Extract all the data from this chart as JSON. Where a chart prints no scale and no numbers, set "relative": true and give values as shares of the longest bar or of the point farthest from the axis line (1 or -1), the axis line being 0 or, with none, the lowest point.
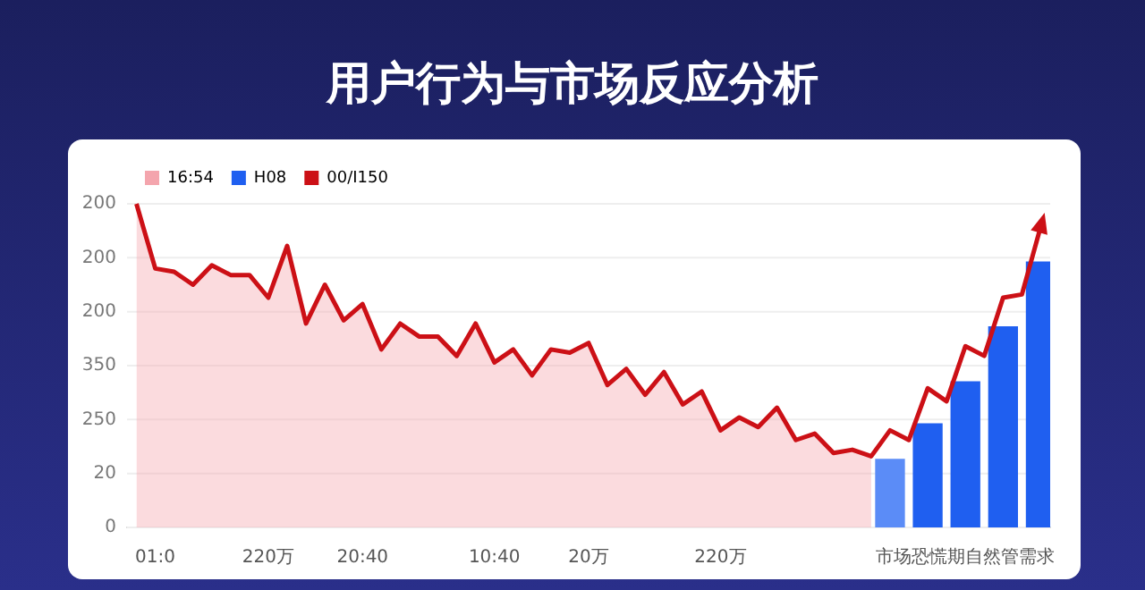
{
  "chart_data": {
    "type": "line",
    "title": "用户行为与市场反应分析",
    "relative": true,
    "categories": [
      null,
      "01:0",
      null,
      null,
      null,
      null,
      null,
      "220万",
      null,
      null,
      null,
      null,
      "20:40",
      null,
      null,
      null,
      null,
      null,
      null,
      "10:40",
      null,
      null,
      null,
      null,
      "20万",
      null,
      null,
      null,
      null,
      null,
      null,
      "220万",
      null,
      null,
      null,
      null,
      null,
      null,
      null,
      null,
      null,
      null,
      null,
      null,
      "市场恐慌期自然管需求",
      null,
      null,
      null,
      null
    ],
    "series": [
      {
        "name": "16:54",
        "type": "area",
        "color": "#f4a5ad",
        "values": [
          1,
          0.8,
          0.79,
          0.75,
          0.81,
          0.78,
          0.78,
          0.71,
          0.87,
          0.63,
          0.75,
          0.64,
          0.69,
          0.55,
          0.63,
          0.59,
          0.59,
          0.53,
          0.63,
          0.51,
          0.55,
          0.47,
          0.55,
          0.54,
          0.57,
          0.44,
          0.49,
          0.41,
          0.48,
          0.38,
          0.42,
          0.3,
          0.34,
          0.31,
          0.37,
          0.27,
          0.29,
          0.23,
          0.24,
          0.22,
          null,
          null,
          null,
          null,
          null,
          null,
          null,
          null,
          null
        ]
      },
      {
        "name": "H08",
        "type": "bar",
        "color": "#1f5ff0",
        "colors": [
          null,
          null,
          null,
          null,
          null,
          null,
          null,
          null,
          null,
          null,
          null,
          null,
          null,
          null,
          null,
          null,
          null,
          null,
          null,
          null,
          null,
          null,
          null,
          null,
          null,
          null,
          null,
          null,
          null,
          null,
          null,
          null,
          null,
          null,
          null,
          null,
          null,
          null,
          null,
          null,
          "#5b8cf7",
          null,
          "#1f5ff0",
          null,
          "#1f5ff0",
          null,
          "#1f5ff0",
          null,
          "#1f5ff0"
        ],
        "values": [
          null,
          null,
          null,
          null,
          null,
          null,
          null,
          null,
          null,
          null,
          null,
          null,
          null,
          null,
          null,
          null,
          null,
          null,
          null,
          null,
          null,
          null,
          null,
          null,
          null,
          null,
          null,
          null,
          null,
          null,
          null,
          null,
          null,
          null,
          null,
          null,
          null,
          null,
          null,
          null,
          0.21,
          null,
          0.32,
          null,
          0.45,
          null,
          0.62,
          null,
          0.82
        ]
      },
      {
        "name": "00/I150",
        "color": "#cc1016",
        "values": [
          1,
          0.8,
          0.79,
          0.75,
          0.81,
          0.78,
          0.78,
          0.71,
          0.87,
          0.63,
          0.75,
          0.64,
          0.69,
          0.55,
          0.63,
          0.59,
          0.59,
          0.53,
          0.63,
          0.51,
          0.55,
          0.47,
          0.55,
          0.54,
          0.57,
          0.44,
          0.49,
          0.41,
          0.48,
          0.38,
          0.42,
          0.3,
          0.34,
          0.31,
          0.37,
          0.27,
          0.29,
          0.23,
          0.24,
          0.22,
          0.3,
          0.27,
          0.43,
          0.39,
          0.56,
          0.53,
          0.71,
          0.72,
          0.93
        ]
      }
    ],
    "annotations": [
      "200",
      "200",
      "200",
      "350",
      "250",
      "20",
      "0"
    ],
    "grid": "y",
    "legend": "top left",
    "marker": "none",
    "line_style": "solid"
  }
}
